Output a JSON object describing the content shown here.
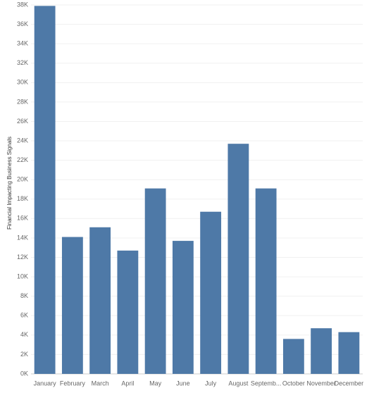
{
  "chart_data": {
    "type": "bar",
    "y_label": "Financial Impacting Business Signals",
    "categories": [
      "January",
      "February",
      "March",
      "April",
      "May",
      "June",
      "July",
      "August",
      "Septemb...",
      "October",
      "November",
      "December"
    ],
    "values": [
      37900,
      14100,
      15100,
      12700,
      19100,
      13700,
      16700,
      23700,
      19100,
      3600,
      4700,
      4300
    ],
    "color": "#4e79a7",
    "ylim": [
      0,
      38000
    ],
    "yticks": [
      {
        "value": 0,
        "label": "0K"
      },
      {
        "value": 2000,
        "label": "2K"
      },
      {
        "value": 4000,
        "label": "4K"
      },
      {
        "value": 6000,
        "label": "6K"
      },
      {
        "value": 8000,
        "label": "8K"
      },
      {
        "value": 10000,
        "label": "10K"
      },
      {
        "value": 12000,
        "label": "12K"
      },
      {
        "value": 14000,
        "label": "14K"
      },
      {
        "value": 16000,
        "label": "16K"
      },
      {
        "value": 18000,
        "label": "18K"
      },
      {
        "value": 20000,
        "label": "20K"
      },
      {
        "value": 22000,
        "label": "22K"
      },
      {
        "value": 24000,
        "label": "24K"
      },
      {
        "value": 26000,
        "label": "26K"
      },
      {
        "value": 28000,
        "label": "28K"
      },
      {
        "value": 30000,
        "label": "30K"
      },
      {
        "value": 32000,
        "label": "32K"
      },
      {
        "value": 34000,
        "label": "34K"
      },
      {
        "value": 36000,
        "label": "36K"
      },
      {
        "value": 38000,
        "label": "38K"
      }
    ],
    "grid": true
  }
}
